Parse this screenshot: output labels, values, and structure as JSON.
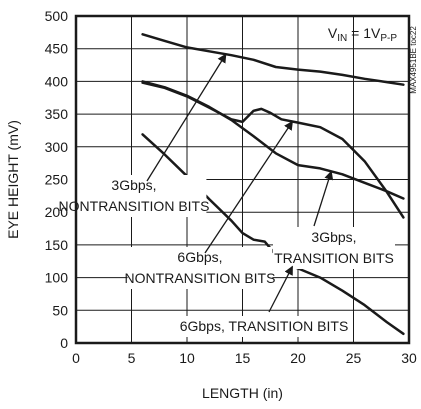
{
  "chart_data": {
    "type": "line",
    "title": "",
    "xlabel": "LENGTH (in)",
    "ylabel": "EYE HEIGHT (mV)",
    "xlim": [
      0,
      30
    ],
    "ylim": [
      0,
      500
    ],
    "xticks": [
      0,
      5,
      10,
      15,
      20,
      25,
      30
    ],
    "yticks": [
      0,
      50,
      100,
      150,
      200,
      250,
      300,
      350,
      400,
      450,
      500
    ],
    "grid": true,
    "condition_label": "V",
    "condition_sub": "IN",
    "condition_value": " = 1V",
    "condition_unit_sub": "P-P",
    "part_id": "MAX4951BE toc22",
    "series": [
      {
        "name": "3Gbps, NONTRANSITION BITS",
        "points": [
          [
            6,
            472
          ],
          [
            8,
            462
          ],
          [
            10,
            452
          ],
          [
            12,
            446
          ],
          [
            14,
            440
          ],
          [
            16,
            433
          ],
          [
            18,
            422
          ],
          [
            20,
            418
          ],
          [
            22,
            415
          ],
          [
            24,
            410
          ],
          [
            26,
            404
          ],
          [
            28,
            399
          ],
          [
            29.5,
            395
          ]
        ]
      },
      {
        "name": "3Gbps, TRANSITION BITS",
        "points": [
          [
            6,
            400
          ],
          [
            8,
            391
          ],
          [
            10,
            378
          ],
          [
            12,
            361
          ],
          [
            14,
            341
          ],
          [
            16,
            316
          ],
          [
            18,
            290
          ],
          [
            20,
            272
          ],
          [
            22,
            267
          ],
          [
            24,
            258
          ],
          [
            26,
            245
          ],
          [
            28,
            232
          ],
          [
            29.5,
            221
          ]
        ]
      },
      {
        "name": "6Gbps, NONTRANSITION BITS",
        "points": [
          [
            6,
            398
          ],
          [
            8,
            390
          ],
          [
            10,
            377
          ],
          [
            12,
            360
          ],
          [
            14,
            342
          ],
          [
            15,
            338
          ],
          [
            16,
            355
          ],
          [
            16.7,
            358
          ],
          [
            17.5,
            352
          ],
          [
            18.5,
            342
          ],
          [
            20,
            337
          ],
          [
            22,
            330
          ],
          [
            24,
            312
          ],
          [
            26,
            278
          ],
          [
            28,
            231
          ],
          [
            29.5,
            192
          ]
        ]
      },
      {
        "name": "6Gbps, TRANSITION BITS",
        "points": [
          [
            6,
            319
          ],
          [
            8,
            288
          ],
          [
            10,
            255
          ],
          [
            12,
            220
          ],
          [
            14,
            187
          ],
          [
            15,
            168
          ],
          [
            16,
            158
          ],
          [
            17,
            155
          ],
          [
            18,
            135
          ],
          [
            19,
            120
          ],
          [
            20,
            114
          ],
          [
            22,
            100
          ],
          [
            24,
            80
          ],
          [
            26,
            58
          ],
          [
            28,
            32
          ],
          [
            29.5,
            14
          ]
        ]
      }
    ],
    "annotations": [
      {
        "lines": [
          "3Gbps,",
          "NONTRANSITION BITS"
        ],
        "target_series": 0
      },
      {
        "lines": [
          "3Gbps,",
          "TRANSITION BITS"
        ],
        "target_series": 1
      },
      {
        "lines": [
          "6Gbps,",
          "NONTRANSITION BITS"
        ],
        "target_series": 2
      },
      {
        "lines": [
          "6Gbps, TRANSITION BITS"
        ],
        "target_series": 3
      }
    ]
  }
}
